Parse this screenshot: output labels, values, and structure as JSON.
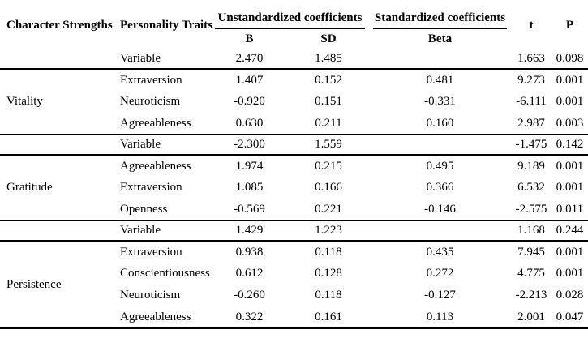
{
  "table": {
    "headers": {
      "col_character_strengths": "Character Strengths",
      "col_personality_traits": "Personality Traits",
      "group_unstandardized": "Unstandardized coefficients",
      "group_standardized": "Standardized coefficients",
      "sub_b": "B",
      "sub_sd": "SD",
      "sub_beta": "Beta",
      "col_t": "t",
      "col_p": "P"
    },
    "groups": [
      {
        "strength": "Vitality",
        "intercept": {
          "trait": "Variable",
          "b": "2.470",
          "sd": "1.485",
          "beta": "",
          "t": "1.663",
          "p": "0.098"
        },
        "rows": [
          {
            "trait": "Extraversion",
            "b": "1.407",
            "sd": "0.152",
            "beta": "0.481",
            "t": "9.273",
            "p": "0.001"
          },
          {
            "trait": "Neuroticism",
            "b": "-0.920",
            "sd": "0.151",
            "beta": "-0.331",
            "t": "-6.111",
            "p": "0.001"
          },
          {
            "trait": "Agreeableness",
            "b": "0.630",
            "sd": "0.211",
            "beta": "0.160",
            "t": "2.987",
            "p": "0.003"
          }
        ]
      },
      {
        "strength": "Gratitude",
        "intercept": {
          "trait": "Variable",
          "b": "-2.300",
          "sd": "1.559",
          "beta": "",
          "t": "-1.475",
          "p": "0.142"
        },
        "rows": [
          {
            "trait": "Agreeableness",
            "b": "1.974",
            "sd": "0.215",
            "beta": "0.495",
            "t": "9.189",
            "p": "0.001"
          },
          {
            "trait": "Extraversion",
            "b": "1.085",
            "sd": "0.166",
            "beta": "0.366",
            "t": "6.532",
            "p": "0.001"
          },
          {
            "trait": "Openness",
            "b": "-0.569",
            "sd": "0.221",
            "beta": "-0.146",
            "t": "-2.575",
            "p": "0.011"
          }
        ]
      },
      {
        "strength": "Persistence",
        "intercept": {
          "trait": "Variable",
          "b": "1.429",
          "sd": "1.223",
          "beta": "",
          "t": "1.168",
          "p": "0.244"
        },
        "rows": [
          {
            "trait": "Extraversion",
            "b": "0.938",
            "sd": "0.118",
            "beta": "0.435",
            "t": "7.945",
            "p": "0.001"
          },
          {
            "trait": "Conscientiousness",
            "b": "0.612",
            "sd": "0.128",
            "beta": "0.272",
            "t": "4.775",
            "p": "0.001"
          },
          {
            "trait": "Neuroticism",
            "b": "-0.260",
            "sd": "0.118",
            "beta": "-0.127",
            "t": "-2.213",
            "p": "0.028"
          },
          {
            "trait": "Agreeableness",
            "b": "0.322",
            "sd": "0.161",
            "beta": "0.113",
            "t": "2.001",
            "p": "0.047"
          }
        ]
      }
    ]
  }
}
